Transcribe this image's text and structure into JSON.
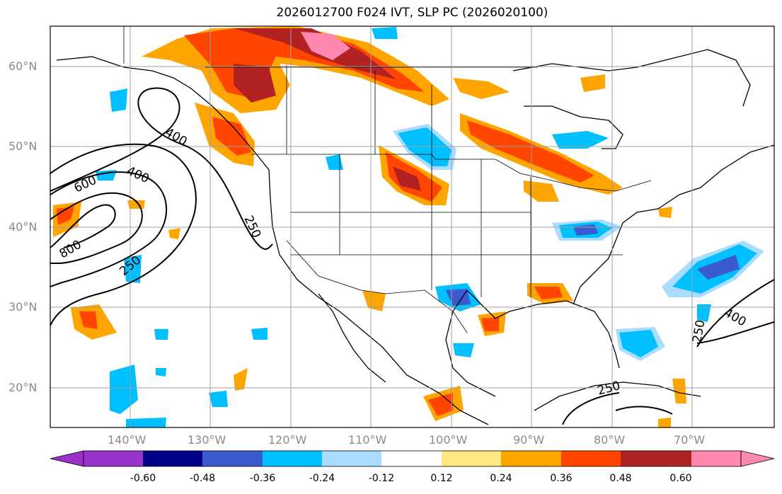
{
  "title": "2026012700 F024 IVT, SLP PC (2026020100)",
  "lat_labels": [
    "60°N",
    "50°N",
    "40°N",
    "30°N",
    "20°N"
  ],
  "lon_labels": [
    "140°W",
    "130°W",
    "120°W",
    "110°W",
    "100°W",
    "90°W",
    "80°W",
    "70°W"
  ],
  "contour_labels": [
    "400",
    "400",
    "600",
    "250",
    "800",
    "250",
    "250",
    "400",
    "250"
  ],
  "colorbar": {
    "ticks": [
      "-0.60",
      "-0.48",
      "-0.36",
      "-0.24",
      "-0.12",
      "0.12",
      "0.24",
      "0.36",
      "0.48",
      "0.60"
    ],
    "colors": [
      "#9933cc",
      "#00008b",
      "#3a5bcf",
      "#00bfff",
      "#aadcff",
      "#ffffff",
      "#ffe680",
      "#ffa500",
      "#ff4500",
      "#b22222",
      "#ff88b0"
    ]
  }
}
